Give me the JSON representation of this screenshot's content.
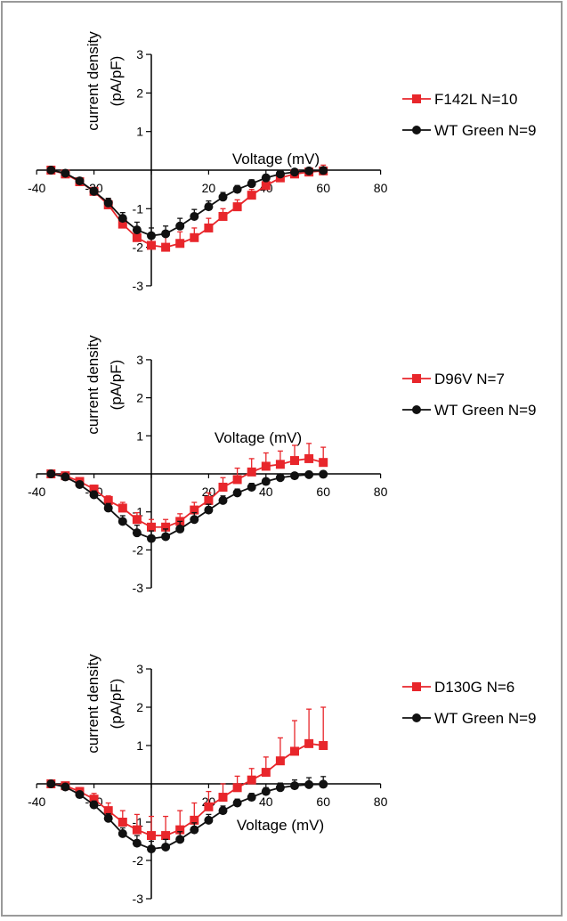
{
  "chart_data": [
    {
      "type": "line",
      "xlabel": "Voltage (mV)",
      "ylabel": "current density (pA/pF)",
      "xlim": [
        -40,
        80
      ],
      "ylim": [
        -3,
        3
      ],
      "x_ticks": [
        "-40",
        "-20",
        "20",
        "40",
        "60",
        "80"
      ],
      "y_ticks": [
        "3",
        "2",
        "1",
        "-1",
        "-2",
        "-3"
      ],
      "x": [
        -35,
        -30,
        -25,
        -20,
        -15,
        -10,
        -5,
        0,
        5,
        10,
        15,
        20,
        25,
        30,
        35,
        40,
        45,
        50,
        55,
        60
      ],
      "series": [
        {
          "name": "F142L N=10",
          "color": "#e8262b",
          "marker": "square",
          "values": [
            0,
            -0.1,
            -0.3,
            -0.55,
            -0.9,
            -1.4,
            -1.75,
            -1.95,
            -2.0,
            -1.9,
            -1.75,
            -1.5,
            -1.2,
            -0.95,
            -0.65,
            -0.4,
            -0.2,
            -0.1,
            -0.05,
            -0.02
          ],
          "errors": [
            0.05,
            0.05,
            0.08,
            0.1,
            0.15,
            0.2,
            0.25,
            0.3,
            0.3,
            0.3,
            0.25,
            0.25,
            0.2,
            0.18,
            0.15,
            0.12,
            0.1,
            0.1,
            0.1,
            0.15
          ]
        },
        {
          "name": "WT Green N=9",
          "color": "#111111",
          "marker": "circle",
          "values": [
            0,
            -0.08,
            -0.28,
            -0.55,
            -0.85,
            -1.25,
            -1.55,
            -1.7,
            -1.65,
            -1.45,
            -1.2,
            -0.95,
            -0.7,
            -0.5,
            -0.35,
            -0.2,
            -0.1,
            -0.05,
            -0.02,
            -0.01
          ],
          "errors": [
            0.05,
            0.05,
            0.08,
            0.1,
            0.12,
            0.15,
            0.2,
            0.2,
            0.2,
            0.2,
            0.18,
            0.15,
            0.12,
            0.1,
            0.1,
            0.08,
            0.08,
            0.08,
            0.08,
            0.08
          ]
        }
      ],
      "legend_position": "right"
    },
    {
      "type": "line",
      "xlabel": "Voltage (mV)",
      "ylabel": "current density (pA/pF)",
      "xlim": [
        -40,
        80
      ],
      "ylim": [
        -3,
        3
      ],
      "x_ticks": [
        "-40",
        "-20",
        "20",
        "40",
        "60",
        "80"
      ],
      "y_ticks": [
        "3",
        "2",
        "1",
        "-1",
        "-2",
        "-3"
      ],
      "x": [
        -35,
        -30,
        -25,
        -20,
        -15,
        -10,
        -5,
        0,
        5,
        10,
        15,
        20,
        25,
        30,
        35,
        40,
        45,
        50,
        55,
        60
      ],
      "series": [
        {
          "name": "D96V N=7",
          "color": "#e8262b",
          "marker": "square",
          "values": [
            0,
            -0.05,
            -0.2,
            -0.4,
            -0.7,
            -0.9,
            -1.2,
            -1.4,
            -1.4,
            -1.25,
            -0.95,
            -0.7,
            -0.35,
            -0.15,
            0.05,
            0.2,
            0.25,
            0.35,
            0.4,
            0.3
          ],
          "errors": [
            0.05,
            0.05,
            0.08,
            0.1,
            0.12,
            0.15,
            0.18,
            0.2,
            0.2,
            0.2,
            0.2,
            0.2,
            0.25,
            0.3,
            0.35,
            0.35,
            0.35,
            0.4,
            0.4,
            0.4
          ]
        },
        {
          "name": "WT Green N=9",
          "color": "#111111",
          "marker": "circle",
          "values": [
            0,
            -0.08,
            -0.28,
            -0.55,
            -0.9,
            -1.25,
            -1.55,
            -1.7,
            -1.65,
            -1.45,
            -1.2,
            -0.95,
            -0.7,
            -0.5,
            -0.35,
            -0.2,
            -0.1,
            -0.05,
            -0.02,
            -0.01
          ],
          "errors": [
            0.05,
            0.05,
            0.08,
            0.1,
            0.12,
            0.15,
            0.2,
            0.2,
            0.2,
            0.2,
            0.18,
            0.15,
            0.12,
            0.1,
            0.1,
            0.08,
            0.08,
            0.08,
            0.08,
            0.08
          ]
        }
      ],
      "legend_position": "right"
    },
    {
      "type": "line",
      "xlabel": "Voltage (mV)",
      "ylabel": "current density (pA/pF)",
      "xlim": [
        -40,
        80
      ],
      "ylim": [
        -3,
        3
      ],
      "x_ticks": [
        "-40",
        "-20",
        "20",
        "40",
        "60",
        "80"
      ],
      "y_ticks": [
        "3",
        "2",
        "1",
        "-1",
        "-2",
        "-3"
      ],
      "x": [
        -35,
        -30,
        -25,
        -20,
        -15,
        -10,
        -5,
        0,
        5,
        10,
        15,
        20,
        25,
        30,
        35,
        40,
        45,
        50,
        55,
        60
      ],
      "series": [
        {
          "name": "D130G N=6",
          "color": "#e8262b",
          "marker": "square",
          "values": [
            0,
            -0.05,
            -0.2,
            -0.4,
            -0.7,
            -1.0,
            -1.2,
            -1.35,
            -1.35,
            -1.2,
            -0.95,
            -0.6,
            -0.35,
            -0.1,
            0.1,
            0.3,
            0.6,
            0.85,
            1.05,
            1.0
          ],
          "errors": [
            0.05,
            0.05,
            0.1,
            0.15,
            0.2,
            0.3,
            0.4,
            0.5,
            0.5,
            0.5,
            0.45,
            0.4,
            0.35,
            0.3,
            0.3,
            0.4,
            0.6,
            0.8,
            0.9,
            1.0
          ]
        },
        {
          "name": "WT Green N=9",
          "color": "#111111",
          "marker": "circle",
          "values": [
            0,
            -0.08,
            -0.28,
            -0.55,
            -0.9,
            -1.3,
            -1.55,
            -1.7,
            -1.65,
            -1.45,
            -1.2,
            -0.95,
            -0.7,
            -0.5,
            -0.35,
            -0.2,
            -0.1,
            -0.05,
            -0.02,
            -0.01
          ],
          "errors": [
            0.05,
            0.05,
            0.08,
            0.1,
            0.12,
            0.15,
            0.2,
            0.2,
            0.2,
            0.2,
            0.18,
            0.15,
            0.12,
            0.1,
            0.1,
            0.1,
            0.12,
            0.15,
            0.18,
            0.2
          ]
        }
      ],
      "legend_position": "right"
    }
  ]
}
